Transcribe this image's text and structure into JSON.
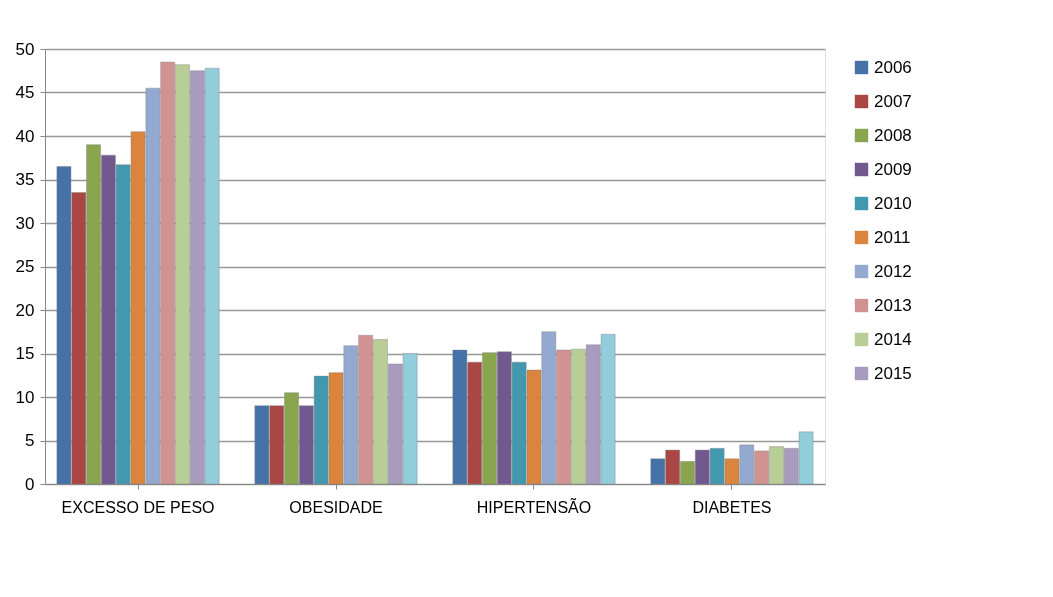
{
  "chart_data": {
    "type": "bar",
    "categories": [
      "EXCESSO DE PESO",
      "OBESIDADE",
      "HIPERTENSÃO",
      "DIABETES"
    ],
    "ylim": [
      0,
      50
    ],
    "yticks": [
      0,
      5,
      10,
      15,
      20,
      25,
      30,
      35,
      40,
      45,
      50
    ],
    "grid": "y",
    "legend": "right",
    "series": [
      {
        "name": "2006",
        "color": "#4572a7",
        "values": [
          36.5,
          9.0,
          15.4,
          2.9
        ]
      },
      {
        "name": "2007",
        "color": "#aa4643",
        "values": [
          33.5,
          9.0,
          14.0,
          3.9
        ]
      },
      {
        "name": "2008",
        "color": "#89a54e",
        "values": [
          39.0,
          10.5,
          15.1,
          2.6
        ]
      },
      {
        "name": "2009",
        "color": "#71588f",
        "values": [
          37.8,
          9.0,
          15.2,
          3.9
        ]
      },
      {
        "name": "2010",
        "color": "#4198af",
        "values": [
          36.7,
          12.4,
          14.0,
          4.1
        ]
      },
      {
        "name": "2011",
        "color": "#db843d",
        "values": [
          40.5,
          12.8,
          13.1,
          2.9
        ]
      },
      {
        "name": "2012",
        "color": "#93a9cf",
        "values": [
          45.5,
          15.9,
          17.5,
          4.5
        ]
      },
      {
        "name": "2013",
        "color": "#d19392",
        "values": [
          48.5,
          17.1,
          15.4,
          3.8
        ]
      },
      {
        "name": "2014",
        "color": "#b9cd96",
        "values": [
          48.2,
          16.6,
          15.5,
          4.3
        ]
      },
      {
        "name": "2015",
        "color": "#a99bbd",
        "values": [
          47.5,
          13.8,
          16.0,
          4.1
        ]
      },
      {
        "color": "#92cddc",
        "values": [
          47.8,
          15.0,
          17.2,
          6.0
        ]
      }
    ]
  }
}
